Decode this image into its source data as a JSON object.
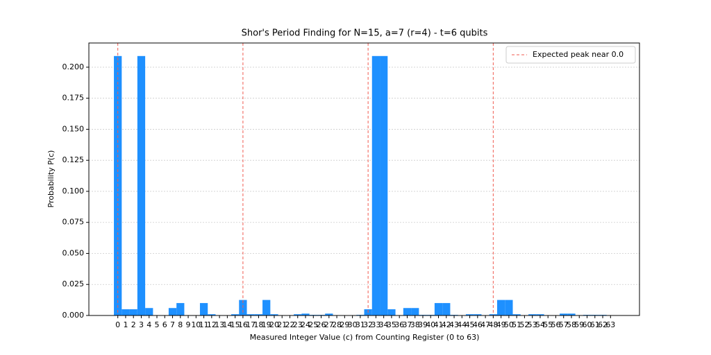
{
  "chart_data": {
    "type": "bar",
    "title": "Shor's Period Finding for N=15, a=7 (r=4) - t=6 qubits",
    "x_label": "Measured Integer Value (c) from Counting Register (0 to 63)",
    "y_label": "Probability P(c)",
    "categories": [
      "0",
      "1",
      "2",
      "3",
      "4",
      "5",
      "6",
      "7",
      "8",
      "9",
      "10",
      "11",
      "12",
      "13",
      "14",
      "15",
      "16",
      "17",
      "18",
      "19",
      "20",
      "21",
      "22",
      "23",
      "24",
      "25",
      "26",
      "27",
      "28",
      "29",
      "30",
      "31",
      "32",
      "33",
      "34",
      "35",
      "36",
      "37",
      "38",
      "39",
      "40",
      "41",
      "42",
      "43",
      "44",
      "45",
      "46",
      "47",
      "48",
      "49",
      "50",
      "51",
      "52",
      "53",
      "54",
      "55",
      "56",
      "57",
      "58",
      "59",
      "60",
      "61",
      "62",
      "63"
    ],
    "values": [
      0.209,
      0.005,
      0.005,
      0.209,
      0.006,
      0,
      0,
      0.006,
      0.01,
      0,
      0,
      0.01,
      0.001,
      0,
      0,
      0.001,
      0.0125,
      0.001,
      0.001,
      0.0125,
      0.001,
      0,
      0,
      0.001,
      0.0015,
      0.0005,
      0.0005,
      0.0015,
      0,
      0,
      0,
      0.0005,
      0.005,
      0.209,
      0.209,
      0.005,
      0,
      0.006,
      0.006,
      0.0005,
      0.0005,
      0.01,
      0.01,
      0.0005,
      0,
      0.001,
      0.001,
      0,
      0.001,
      0.0125,
      0.0125,
      0.001,
      0,
      0.001,
      0.001,
      0,
      0,
      0.0015,
      0.0015,
      0,
      0.0005,
      0.0005,
      0.0005,
      0
    ],
    "color": "#1e90ff",
    "xlim": [
      -3.7,
      66.7
    ],
    "ylim": [
      0,
      0.2195
    ],
    "yticks": [
      {
        "value": 0,
        "label": "0.000"
      },
      {
        "value": 0.025,
        "label": "0.025"
      },
      {
        "value": 0.05,
        "label": "0.050"
      },
      {
        "value": 0.075,
        "label": "0.075"
      },
      {
        "value": 0.1,
        "label": "0.100"
      },
      {
        "value": 0.125,
        "label": "0.125"
      },
      {
        "value": 0.15,
        "label": "0.150"
      },
      {
        "value": 0.175,
        "label": "0.175"
      },
      {
        "value": 0.2,
        "label": "0.200"
      }
    ],
    "grid": true,
    "reference_lines": {
      "name": "Expected peak near 0.0",
      "color": "#f05a4f",
      "x": [
        0,
        16,
        32,
        48
      ]
    },
    "legend": "upper right"
  }
}
